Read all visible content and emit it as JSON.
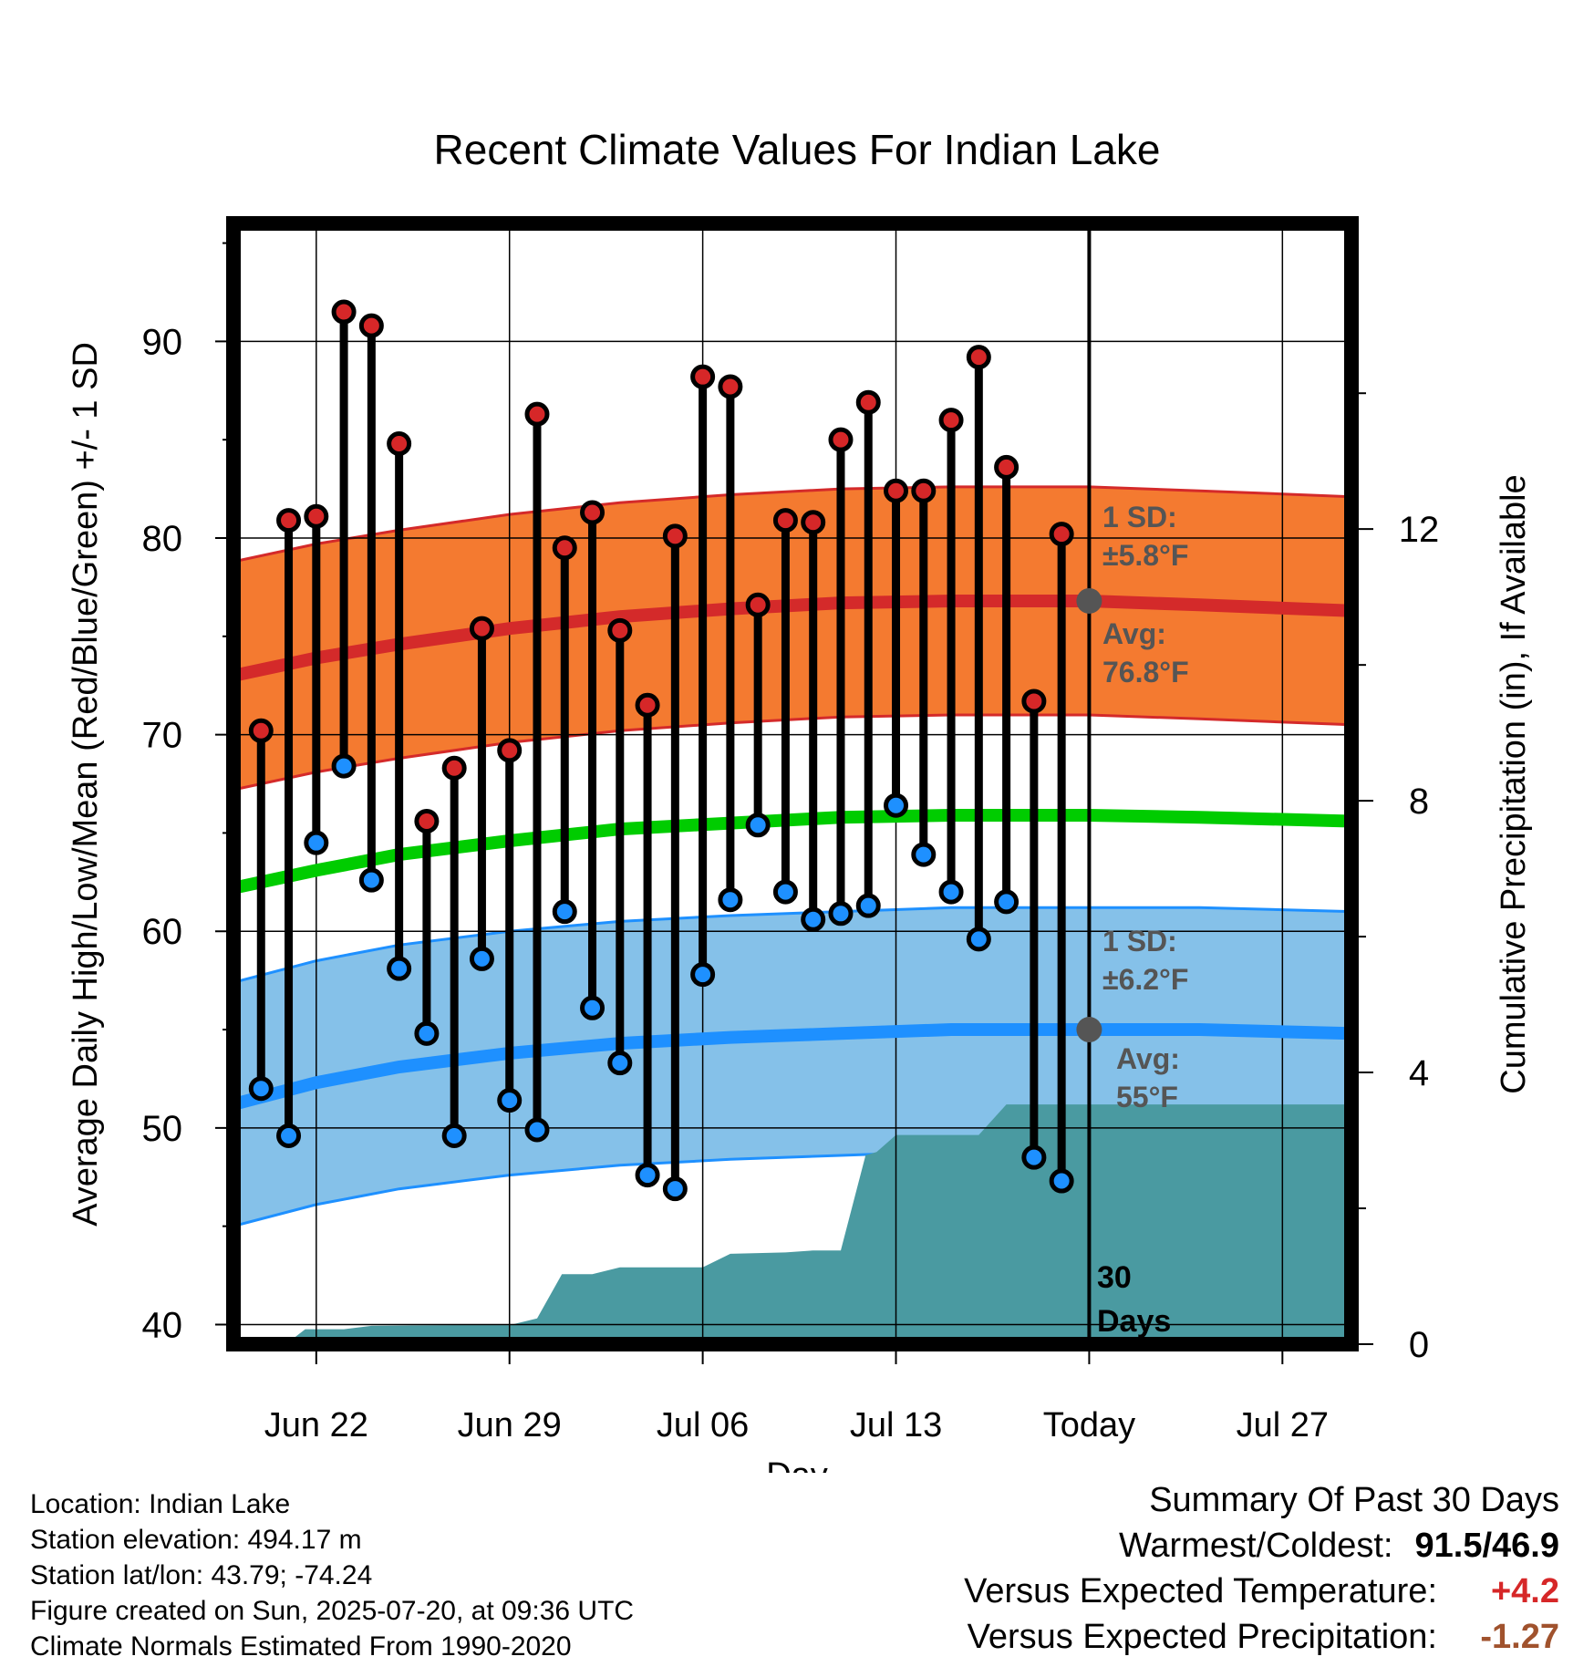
{
  "chart_data": {
    "type": "line",
    "title": "Recent Climate Values For Indian Lake",
    "xlabel": "Day",
    "ylabel": "Average Daily High/Low/Mean (Red/Blue/Green) +/- 1 SD",
    "y2label": "Cumulative Precipitation (in), If Available",
    "x_tick_labels": [
      "Jun 22",
      "Jun 29",
      "Jul 06",
      "Jul 13",
      "Today",
      "Jul 27"
    ],
    "x_tick_days": [
      2,
      9,
      16,
      23,
      30,
      37
    ],
    "xlim_days": [
      -1,
      39.5
    ],
    "ylim": [
      39,
      96
    ],
    "y_ticks": [
      40,
      50,
      60,
      70,
      80,
      90
    ],
    "y2lim": [
      0,
      16.5
    ],
    "y2_ticks": [
      0,
      4,
      8,
      12
    ],
    "grid": true,
    "today_day": 30,
    "today_label": [
      "30",
      "Days"
    ],
    "observed": {
      "days": [
        0,
        1,
        2,
        3,
        4,
        5,
        6,
        7,
        8,
        9,
        10,
        11,
        12,
        13,
        14,
        15,
        16,
        17,
        18,
        19,
        20,
        21,
        22,
        23,
        24,
        25,
        26,
        27,
        28,
        29
      ],
      "high": [
        70.2,
        80.9,
        81.1,
        91.5,
        90.8,
        84.8,
        65.6,
        68.3,
        75.4,
        69.2,
        86.3,
        79.5,
        81.3,
        75.3,
        71.5,
        80.1,
        88.2,
        87.7,
        76.6,
        80.9,
        80.8,
        85.0,
        86.9,
        82.4,
        82.4,
        86.0,
        89.2,
        83.6,
        71.7,
        80.2
      ],
      "low": [
        52.0,
        49.6,
        64.5,
        68.4,
        62.6,
        58.1,
        54.8,
        49.6,
        58.6,
        51.4,
        49.9,
        61.0,
        56.1,
        53.3,
        47.6,
        46.9,
        57.8,
        61.6,
        65.4,
        62.0,
        60.6,
        60.9,
        61.3,
        66.4,
        63.9,
        62.0,
        59.6,
        61.5,
        48.5,
        47.3
      ]
    },
    "normals": {
      "days": [
        -1,
        2,
        5,
        9,
        13,
        17,
        21,
        25,
        30,
        34,
        39.5
      ],
      "high_mean": [
        73.0,
        73.9,
        74.6,
        75.4,
        76.0,
        76.4,
        76.7,
        76.8,
        76.8,
        76.6,
        76.3
      ],
      "low_mean": [
        51.2,
        52.3,
        53.1,
        53.8,
        54.3,
        54.6,
        54.8,
        55.0,
        55.0,
        55.0,
        54.8
      ],
      "daily_mean": [
        62.2,
        63.1,
        63.9,
        64.6,
        65.2,
        65.5,
        65.8,
        65.9,
        65.9,
        65.8,
        65.6
      ],
      "high_sd": 5.8,
      "low_sd": 6.2
    },
    "high_label": [
      "1 SD:",
      "±5.8°F",
      "Avg:",
      "76.8°F"
    ],
    "low_label": [
      "1 SD:",
      "±6.2°F",
      "Avg:",
      "55°F"
    ],
    "precip": {
      "days": [
        -1,
        0,
        0.9,
        1.6,
        3,
        4,
        7,
        9,
        10,
        10.9,
        12,
        13,
        16,
        17,
        19,
        20,
        21,
        21.9,
        22.3,
        23,
        26,
        27,
        39.5
      ],
      "cum": [
        0,
        0,
        0,
        0.22,
        0.22,
        0.27,
        0.28,
        0.28,
        0.38,
        1.03,
        1.03,
        1.13,
        1.13,
        1.33,
        1.35,
        1.38,
        1.38,
        2.78,
        2.83,
        3.08,
        3.08,
        3.53,
        3.53
      ]
    },
    "colors": {
      "high_dot": "#d62728",
      "low_dot": "#1e90ff",
      "high_band": "#f47a30",
      "high_line": "#d42a2a",
      "low_band": "#85c1e9",
      "low_line": "#1e90ff",
      "mean_line": "#00cc00",
      "precip": "#4a9aa1",
      "label_gray": "#555555"
    }
  },
  "footer": {
    "location": "Location: Indian Lake",
    "elevation": "Station elevation: 494.17 m",
    "latlon": "Station lat/lon: 43.79; -74.24",
    "created": "Figure created on Sun, 2025-07-20, at 09:36 UTC",
    "normals": "Climate Normals Estimated From 1990-2020"
  },
  "summary": {
    "title": "Summary Of Past 30 Days",
    "warm_cold_label": "Warmest/Coldest:",
    "warm_cold_value": "91.5/46.9",
    "temp_label": "Versus Expected Temperature:",
    "temp_value": "+4.2",
    "temp_color": "#d62728",
    "precip_label": "Versus Expected Precipitation:",
    "precip_value": "-1.27",
    "precip_color": "#a0522d"
  }
}
